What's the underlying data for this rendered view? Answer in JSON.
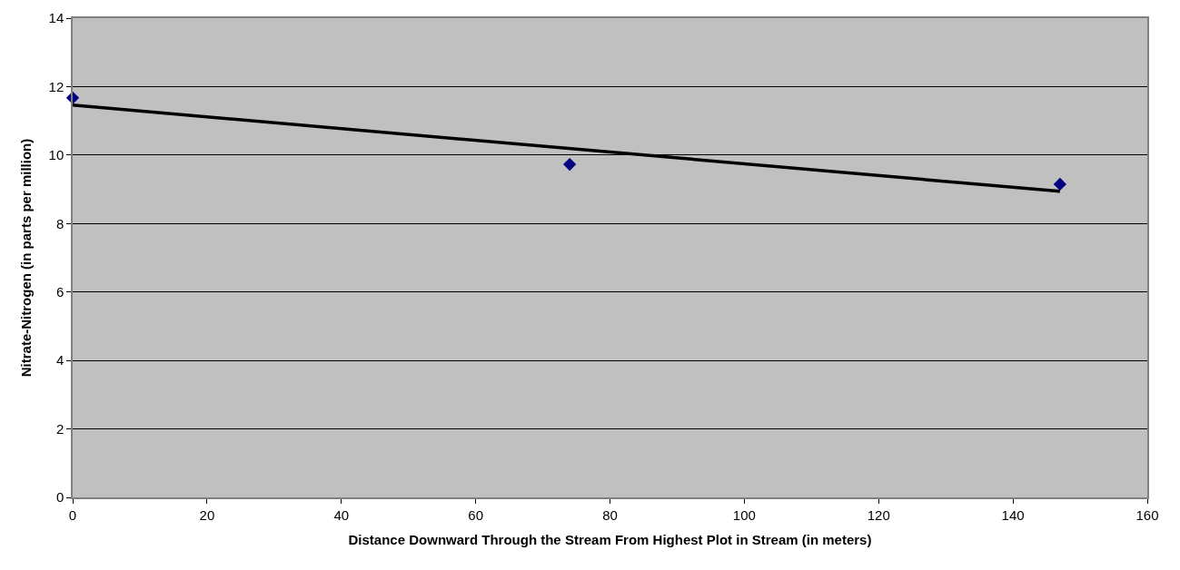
{
  "chart_data": {
    "type": "scatter",
    "xlabel": "Distance Downward Through the Stream From Highest Plot in Stream (in meters)",
    "ylabel": "Nitrate-Nitrogen (in parts per million)",
    "xlim": [
      0,
      160
    ],
    "xticks": [
      0,
      20,
      40,
      60,
      80,
      100,
      120,
      140,
      160
    ],
    "ylim": [
      0,
      14
    ],
    "yticks": [
      0,
      2,
      4,
      6,
      8,
      10,
      12,
      14
    ],
    "grid": "y",
    "series": [
      {
        "color": "#000080",
        "marker": "diamond",
        "x": [
          0,
          74,
          147
        ],
        "values": [
          11.67,
          9.73,
          9.15
        ]
      },
      {
        "type": "line",
        "color": "#000000",
        "marker": "none",
        "line_style": "solid",
        "x": [
          0,
          147
        ],
        "values": [
          11.46,
          8.94
        ]
      }
    ]
  }
}
